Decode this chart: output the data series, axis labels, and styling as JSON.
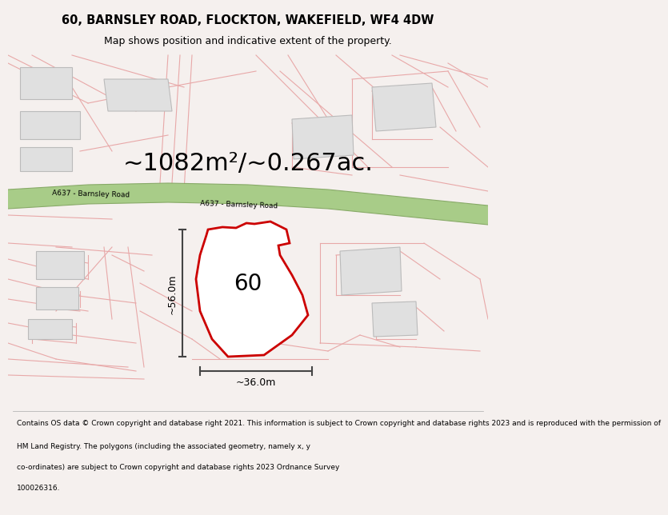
{
  "title_line1": "60, BARNSLEY ROAD, FLOCKTON, WAKEFIELD, WF4 4DW",
  "title_line2": "Map shows position and indicative extent of the property.",
  "area_text": "~1082m²/~0.267ac.",
  "label_60": "60",
  "dim_height": "~56.0m",
  "dim_width": "~36.0m",
  "road_label1": "A637 - Barnsley Road",
  "road_label2": "A637 - Barnsley Road",
  "footer_lines": [
    "Contains OS data © Crown copyright and database right 2021. This information is subject to Crown copyright and database rights 2023 and is reproduced with the permission of",
    "HM Land Registry. The polygons (including the associated geometry, namely x, y",
    "co-ordinates) are subject to Crown copyright and database rights 2023 Ordnance Survey",
    "100026316."
  ],
  "page_bg": "#f5f0ee",
  "map_bg": "#ffffff",
  "road_fill": "#a8cc88",
  "road_edge": "#88aa68",
  "plot_stroke": "#cc0000",
  "plot_fill": "#ffffff",
  "cadastral_color": "#e8a8a8",
  "building_fill": "#e0e0e0",
  "building_edge": "#bbbbbb",
  "dim_color": "#444444",
  "title_fontsize": 10.5,
  "subtitle_fontsize": 9.0,
  "area_fontsize": 22,
  "label_fontsize": 20,
  "dim_fontsize": 9,
  "road_fontsize": 6.5,
  "footer_fontsize": 6.5
}
